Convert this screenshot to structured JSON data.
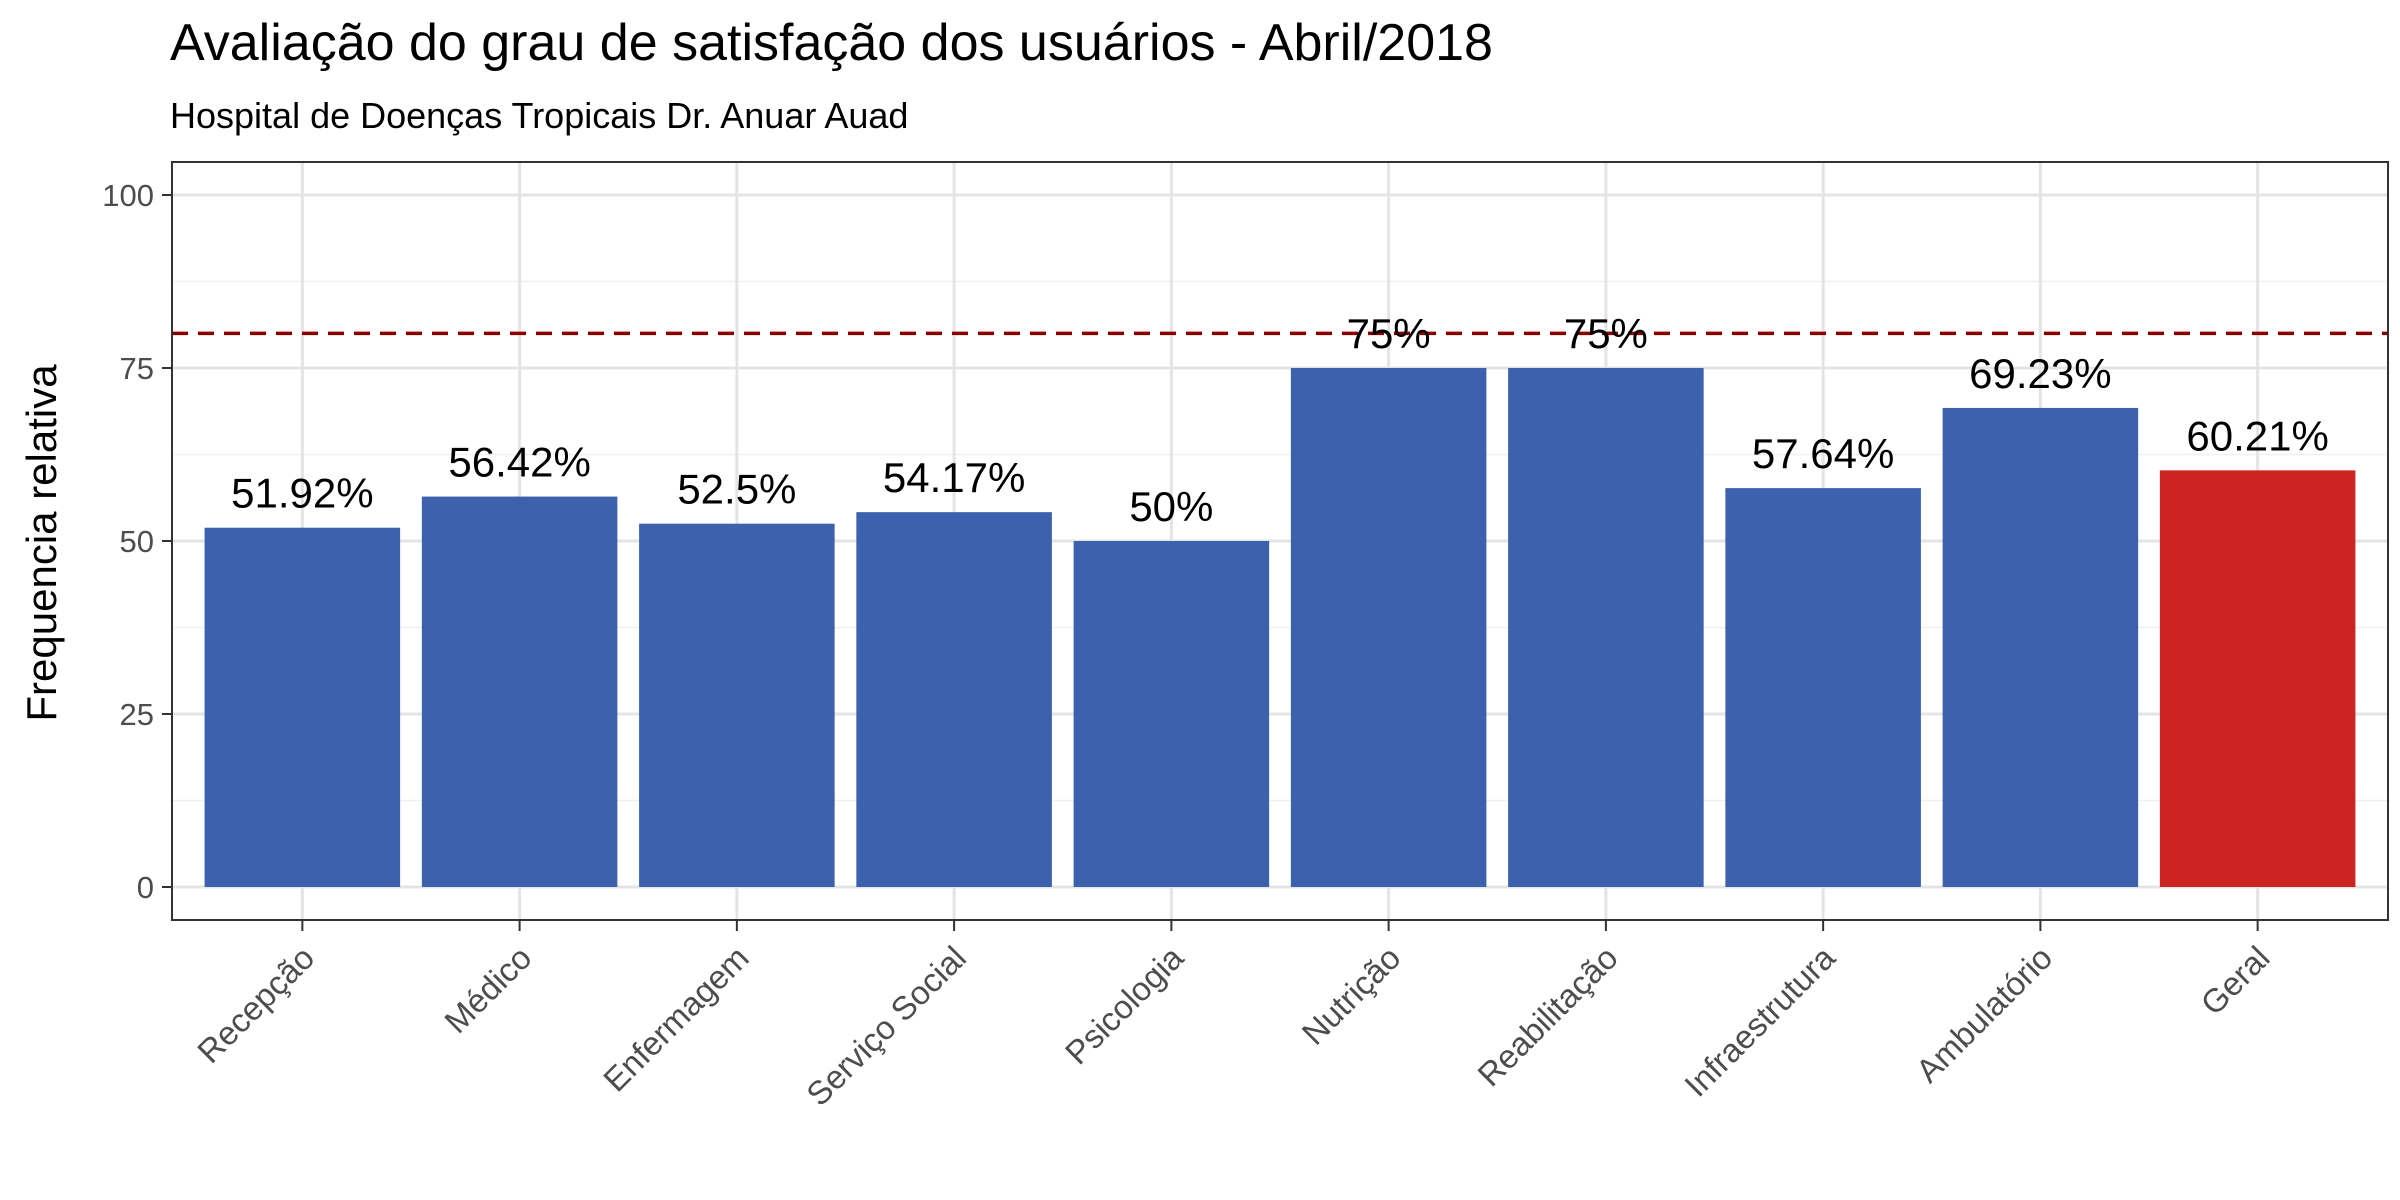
{
  "chart_data": {
    "type": "bar",
    "title": "Avaliação do grau de satisfação dos usuários - Abril/2018",
    "subtitle": "Hospital de Doenças Tropicais Dr. Anuar Auad",
    "xlabel": "",
    "ylabel": "Frequencia relativa",
    "ylim": [
      0,
      100
    ],
    "yticks": [
      0,
      25,
      50,
      75,
      100
    ],
    "grid": true,
    "reference_line": {
      "value": 80,
      "style": "dashed",
      "color": "#8b0000"
    },
    "categories": [
      "Recepção",
      "Médico",
      "Enfermagem",
      "Serviço Social",
      "Psicologia",
      "Nutrição",
      "Reabilitação",
      "Infraestrutura",
      "Ambulatório",
      "Geral"
    ],
    "values": [
      51.92,
      56.42,
      52.5,
      54.17,
      50,
      75,
      75,
      57.64,
      69.23,
      60.21
    ],
    "data_labels": [
      "51.92%",
      "56.42%",
      "52.5%",
      "54.17%",
      "50%",
      "75%",
      "75%",
      "57.64%",
      "69.23%",
      "60.21%"
    ],
    "bar_colors": [
      "#3c61ad",
      "#3c61ad",
      "#3c61ad",
      "#3c61ad",
      "#3c61ad",
      "#3c61ad",
      "#3c61ad",
      "#3c61ad",
      "#3c61ad",
      "#cc2521"
    ]
  }
}
